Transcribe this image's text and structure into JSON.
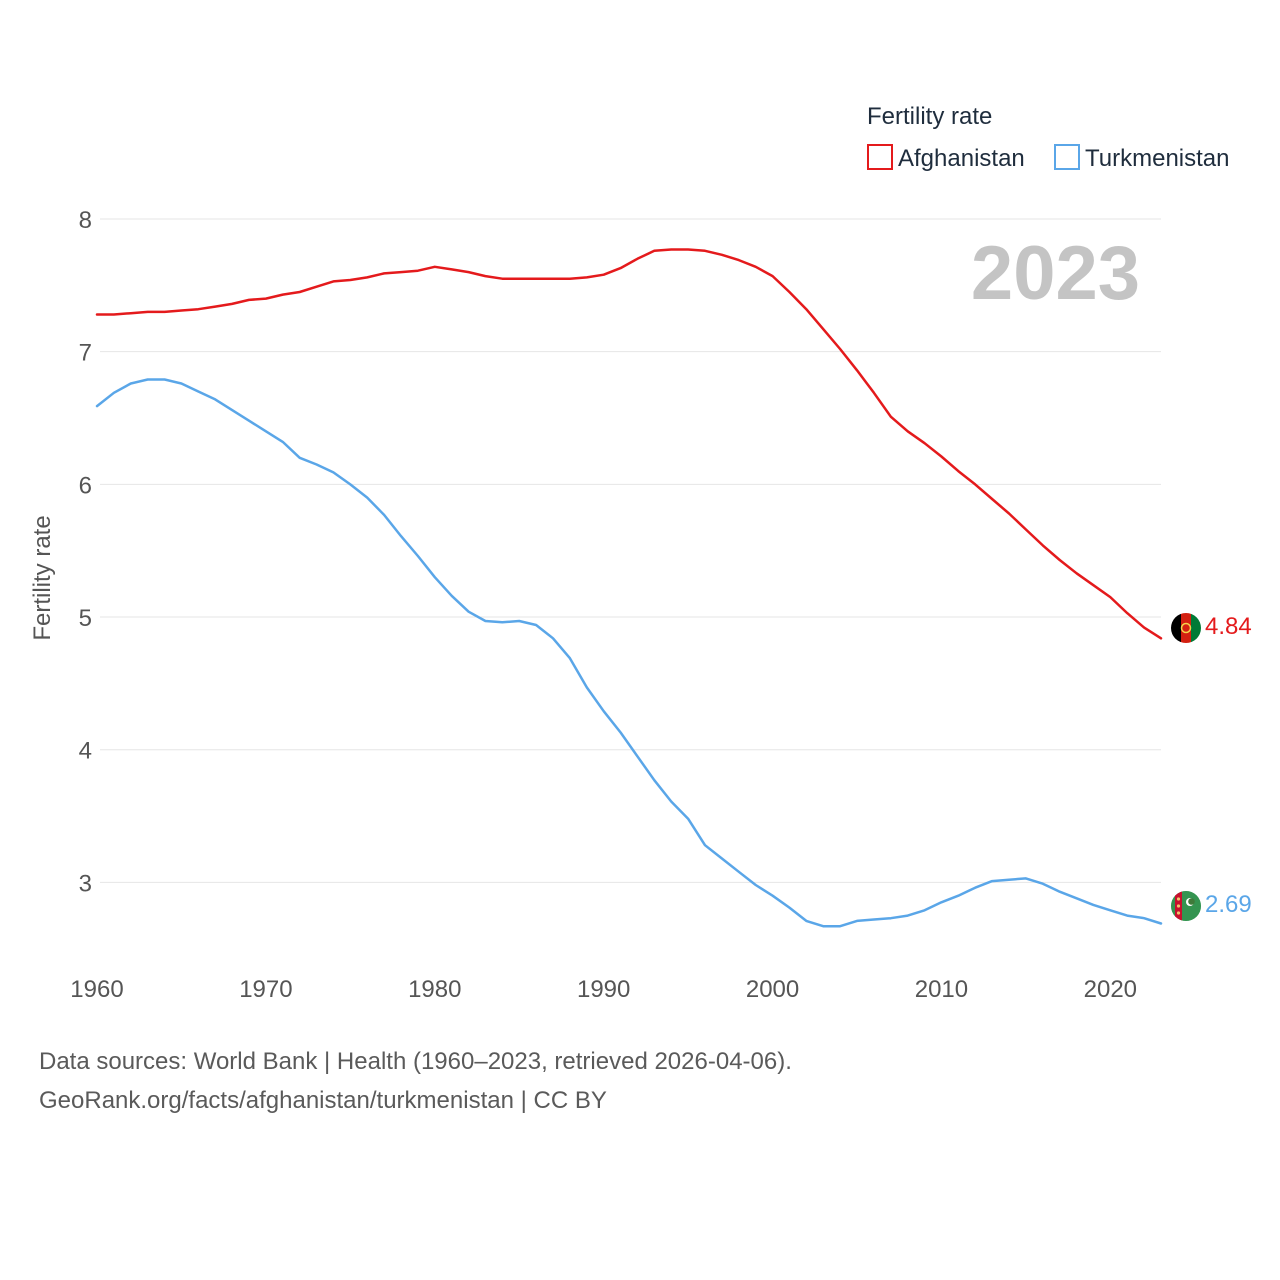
{
  "chart_data": {
    "type": "line",
    "title": "Fertility rate",
    "xlabel": "",
    "ylabel": "Fertility rate",
    "xlim": [
      1960,
      2023
    ],
    "ylim": [
      2.4,
      8.0
    ],
    "x_ticks": [
      1960,
      1970,
      1980,
      1990,
      2000,
      2010,
      2020
    ],
    "y_ticks": [
      3,
      4,
      5,
      6,
      7,
      8
    ],
    "grid": true,
    "legend_position": "top-right",
    "year_label": "2023",
    "x": [
      1960,
      1961,
      1962,
      1963,
      1964,
      1965,
      1966,
      1967,
      1968,
      1969,
      1970,
      1971,
      1972,
      1973,
      1974,
      1975,
      1976,
      1977,
      1978,
      1979,
      1980,
      1981,
      1982,
      1983,
      1984,
      1985,
      1986,
      1987,
      1988,
      1989,
      1990,
      1991,
      1992,
      1993,
      1994,
      1995,
      1996,
      1997,
      1998,
      1999,
      2000,
      2001,
      2002,
      2003,
      2004,
      2005,
      2006,
      2007,
      2008,
      2009,
      2010,
      2011,
      2012,
      2013,
      2014,
      2015,
      2016,
      2017,
      2018,
      2019,
      2020,
      2021,
      2022,
      2023
    ],
    "series": [
      {
        "name": "Afghanistan",
        "color": "#e41a1c",
        "end_label": "4.84",
        "flag": "afghanistan-flag",
        "values": [
          7.28,
          7.28,
          7.29,
          7.3,
          7.3,
          7.31,
          7.32,
          7.34,
          7.36,
          7.39,
          7.4,
          7.43,
          7.45,
          7.49,
          7.53,
          7.54,
          7.56,
          7.59,
          7.6,
          7.61,
          7.64,
          7.62,
          7.6,
          7.57,
          7.55,
          7.55,
          7.55,
          7.55,
          7.55,
          7.56,
          7.58,
          7.63,
          7.7,
          7.76,
          7.77,
          7.77,
          7.76,
          7.73,
          7.69,
          7.64,
          7.57,
          7.45,
          7.32,
          7.17,
          7.02,
          6.86,
          6.69,
          6.51,
          6.4,
          6.31,
          6.21,
          6.1,
          6.0,
          5.89,
          5.78,
          5.66,
          5.54,
          5.43,
          5.33,
          5.24,
          5.15,
          5.03,
          4.92,
          4.84
        ]
      },
      {
        "name": "Turkmenistan",
        "color": "#5aa6e8",
        "end_label": "2.69",
        "flag": "turkmenistan-flag",
        "values": [
          6.59,
          6.69,
          6.76,
          6.79,
          6.79,
          6.76,
          6.7,
          6.64,
          6.56,
          6.48,
          6.4,
          6.32,
          6.2,
          6.15,
          6.09,
          6.0,
          5.9,
          5.77,
          5.61,
          5.46,
          5.3,
          5.16,
          5.04,
          4.97,
          4.96,
          4.97,
          4.94,
          4.84,
          4.69,
          4.47,
          4.29,
          4.13,
          3.95,
          3.77,
          3.61,
          3.48,
          3.28,
          3.18,
          3.08,
          2.98,
          2.9,
          2.81,
          2.71,
          2.67,
          2.67,
          2.71,
          2.72,
          2.73,
          2.75,
          2.79,
          2.85,
          2.9,
          2.96,
          3.01,
          3.02,
          3.03,
          2.99,
          2.93,
          2.88,
          2.83,
          2.79,
          2.75,
          2.73,
          2.69
        ]
      }
    ]
  },
  "footer": {
    "line1": "Data sources: World Bank | Health (1960–2023, retrieved 2026-04-06).",
    "line2": "GeoRank.org/facts/afghanistan/turkmenistan | CC BY"
  }
}
